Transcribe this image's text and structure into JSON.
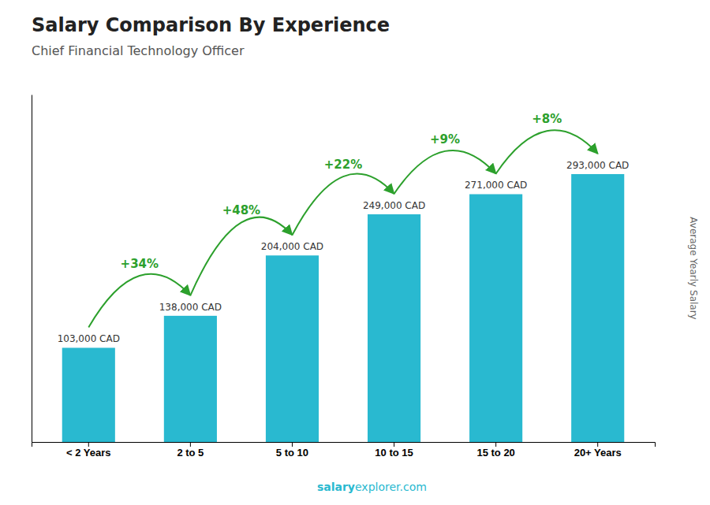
{
  "chart_data": {
    "type": "bar",
    "title": "Salary Comparison By Experience",
    "subtitle": "Chief Financial Technology Officer",
    "ylabel": "Average Yearly Salary",
    "categories": [
      "< 2 Years",
      "2 to 5",
      "5 to 10",
      "10 to 15",
      "15 to 20",
      "20+ Years"
    ],
    "values": [
      103000,
      138000,
      204000,
      249000,
      271000,
      293000
    ],
    "value_labels": [
      "103,000 CAD",
      "138,000 CAD",
      "204,000 CAD",
      "249,000 CAD",
      "271,000 CAD",
      "293,000 CAD"
    ],
    "data_labels": true,
    "annotations": [
      "+34%",
      "+48%",
      "+22%",
      "+9%",
      "+8%"
    ],
    "color": "#29b9d0",
    "ylim": [
      0,
      380000
    ],
    "tick_labels": "x",
    "grid": false,
    "footer_bold": "salary",
    "footer_normal": "explorer.com"
  }
}
